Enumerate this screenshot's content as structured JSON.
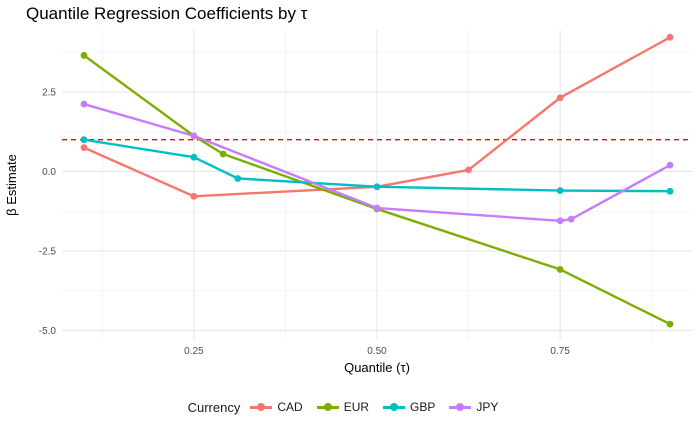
{
  "chart_data": {
    "type": "line",
    "title": "Quantile Regression Coefficients by τ",
    "xlabel": "Quantile (τ)",
    "ylabel": "β Estimate",
    "xlim": [
      0.07,
      0.93
    ],
    "ylim": [
      -5.3,
      4.45
    ],
    "xticks": [
      0.25,
      0.5,
      0.75
    ],
    "xtick_labels": [
      "0.25",
      "0.50",
      "0.75"
    ],
    "yticks": [
      -5.0,
      -2.5,
      0.0,
      2.5
    ],
    "ytick_labels": [
      "-5.0",
      "-2.5",
      "0.0",
      "2.5"
    ],
    "grid": true,
    "reference_line": {
      "y": 1.0,
      "color": "#ff0000",
      "style": "dashed"
    },
    "legend": {
      "title": "Currency",
      "position": "bottom"
    },
    "series": [
      {
        "name": "CAD",
        "color": "#F8766D",
        "points": [
          [
            0.1,
            0.75
          ],
          [
            0.25,
            -0.78
          ],
          [
            0.5,
            -0.48
          ],
          [
            0.625,
            0.05
          ],
          [
            0.75,
            2.32
          ],
          [
            0.9,
            4.22
          ]
        ]
      },
      {
        "name": "EUR",
        "color": "#7CAE00",
        "points": [
          [
            0.1,
            3.65
          ],
          [
            0.25,
            1.12
          ],
          [
            0.29,
            0.55
          ],
          [
            0.5,
            -1.18
          ],
          [
            0.75,
            -3.08
          ],
          [
            0.9,
            -4.8
          ]
        ]
      },
      {
        "name": "GBP",
        "color": "#00BFC4",
        "points": [
          [
            0.1,
            1.0
          ],
          [
            0.25,
            0.45
          ],
          [
            0.31,
            -0.22
          ],
          [
            0.5,
            -0.48
          ],
          [
            0.75,
            -0.6
          ],
          [
            0.9,
            -0.62
          ]
        ]
      },
      {
        "name": "JPY",
        "color": "#C77CFF",
        "points": [
          [
            0.1,
            2.12
          ],
          [
            0.25,
            1.12
          ],
          [
            0.5,
            -1.15
          ],
          [
            0.75,
            -1.55
          ],
          [
            0.765,
            -1.5
          ],
          [
            0.9,
            0.2
          ]
        ]
      }
    ]
  }
}
